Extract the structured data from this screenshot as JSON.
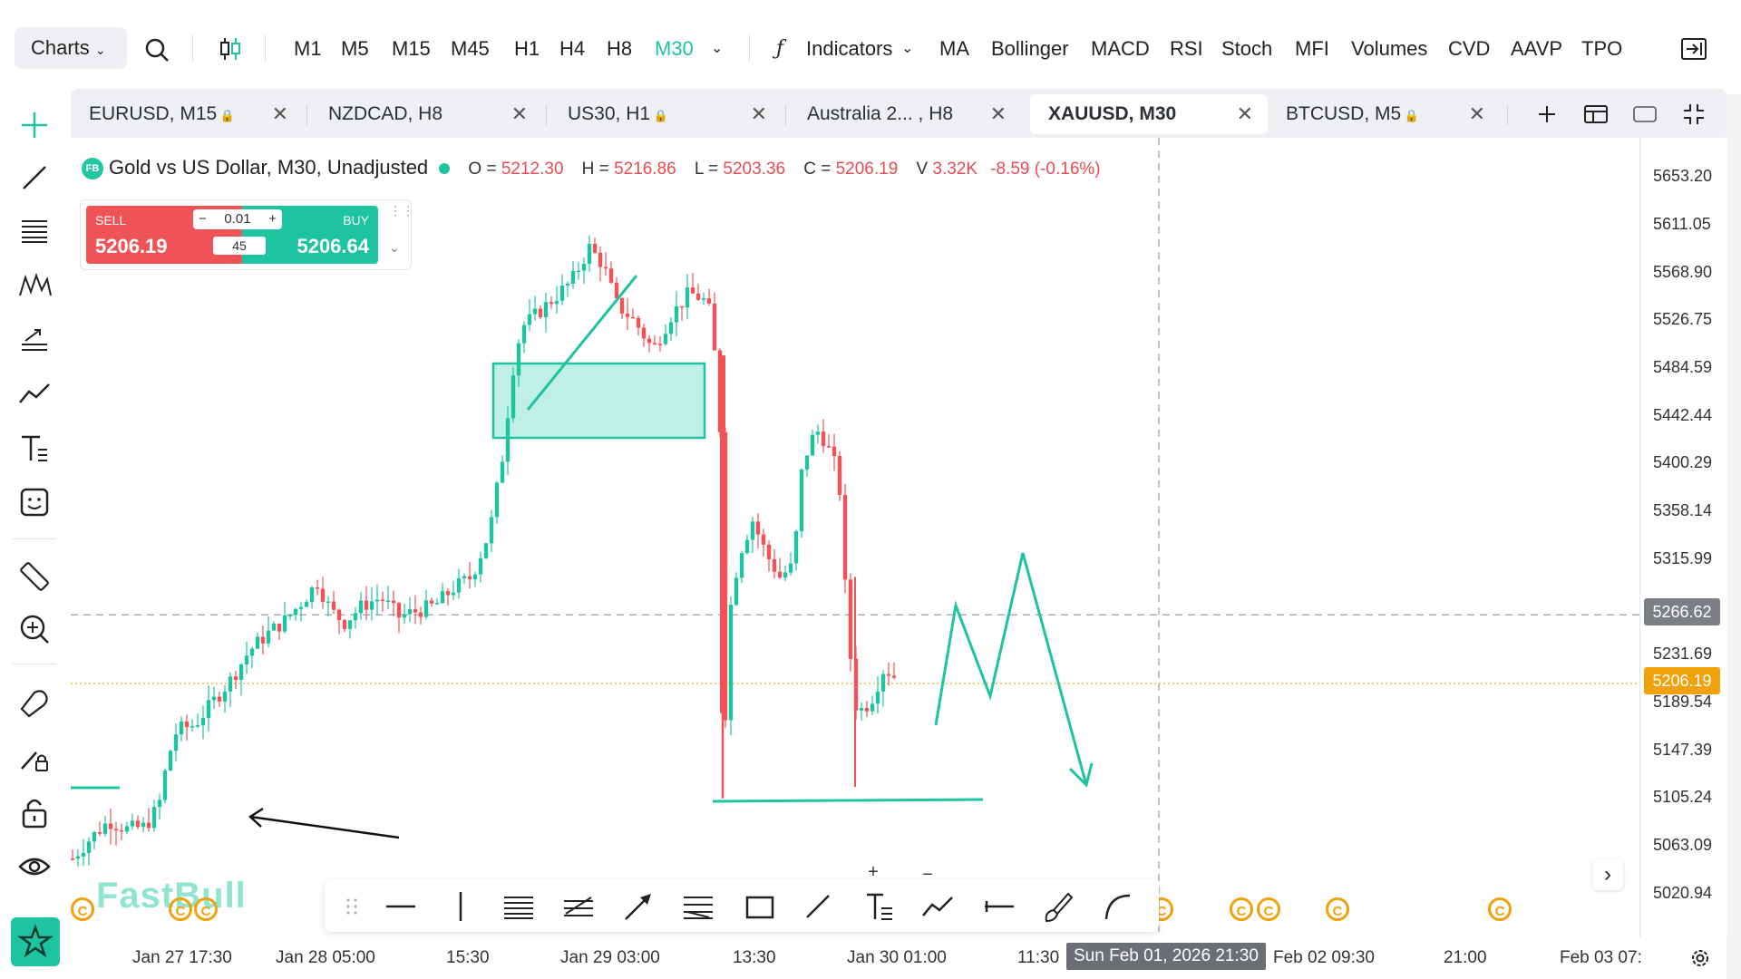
{
  "toolbar": {
    "charts_label": "Charts",
    "timeframes": [
      "M1",
      "M5",
      "M15",
      "M45",
      "H1",
      "H4",
      "H8"
    ],
    "active_timeframe": "M30",
    "indicators_label": "Indicators",
    "indicators": [
      "MA",
      "Bollinger",
      "MACD",
      "RSI",
      "Stoch",
      "MFI",
      "Volumes",
      "CVD",
      "AAVP",
      "TPO"
    ]
  },
  "tabs": [
    {
      "label": "EURUSD, M15",
      "locked": true
    },
    {
      "label": "NZDCAD, H8",
      "locked": false
    },
    {
      "label": "US30, H1",
      "locked": true
    },
    {
      "label": "Australia 2... , H8",
      "locked": false
    },
    {
      "label": "XAUUSD, M30",
      "locked": false,
      "active": true
    },
    {
      "label": "BTCUSD, M5",
      "locked": true
    }
  ],
  "legend": {
    "badge": "FB",
    "title": "Gold vs US Dollar, M30, Unadjusted",
    "o_label": "O =",
    "o": "5212.30",
    "h_label": "H =",
    "h": "5216.86",
    "l_label": "L =",
    "l": "5203.36",
    "c_label": "C =",
    "c": "5206.19",
    "v_label": "V",
    "v": "3.32K",
    "change": "-8.59 (-0.16%)"
  },
  "trade": {
    "sell_label": "SELL",
    "sell_price": "5206.19",
    "buy_label": "BUY",
    "buy_price": "5206.64",
    "lot": "0.01",
    "spread": "45"
  },
  "price_axis": {
    "labels": [
      "5653.20",
      "5611.05",
      "5568.90",
      "5526.75",
      "5484.59",
      "5442.44",
      "5400.29",
      "5358.14",
      "5315.99",
      "5231.69",
      "5189.54",
      "5147.39",
      "5105.24",
      "5063.09",
      "5020.94"
    ],
    "crosshair_price": "5266.62",
    "last_price": "5206.19"
  },
  "time_axis": {
    "labels": [
      "Jan 27 17:30",
      "Jan 28 05:00",
      "15:30",
      "Jan 29 03:00",
      "13:30",
      "Jan 30 01:00",
      "11:30",
      "Feb 02 09:30",
      "21:00",
      "Feb 03 07:"
    ],
    "crosshair_time": "Sun Feb 01, 2026 21:30"
  },
  "watermark": "FastBull",
  "colors": {
    "accent": "#1ec4a0",
    "bear": "#ef5257",
    "bull": "#1ec4a0",
    "last_price": "#f0a20a"
  }
}
